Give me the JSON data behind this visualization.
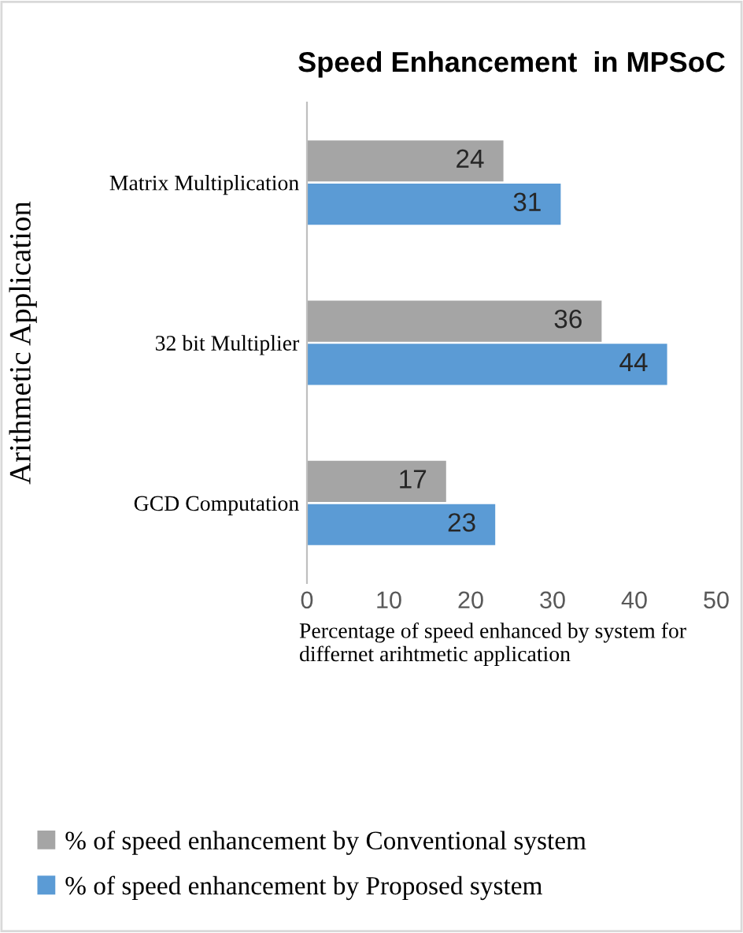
{
  "chart_data": {
    "type": "bar",
    "orientation": "horizontal",
    "title": "Speed Enhancement  in MPSoC",
    "ylabel": "Arithmetic Application",
    "xlabel": "Percentage of speed enhanced by system for differnet arihtmetic application",
    "categories": [
      "Matrix Multiplication",
      "32 bit Multiplier",
      "GCD Computation"
    ],
    "series": [
      {
        "name": "% of speed enhancement by Conventional system",
        "color": "#a5a5a5",
        "values": [
          24,
          36,
          17
        ]
      },
      {
        "name": "% of speed enhancement by Proposed system",
        "color": "#5b9bd5",
        "values": [
          31,
          44,
          23
        ]
      }
    ],
    "xlim": [
      0,
      50
    ],
    "xticks": [
      0,
      10,
      20,
      30,
      40,
      50
    ],
    "data_labels": true,
    "legend": "bottom",
    "grid": false
  }
}
